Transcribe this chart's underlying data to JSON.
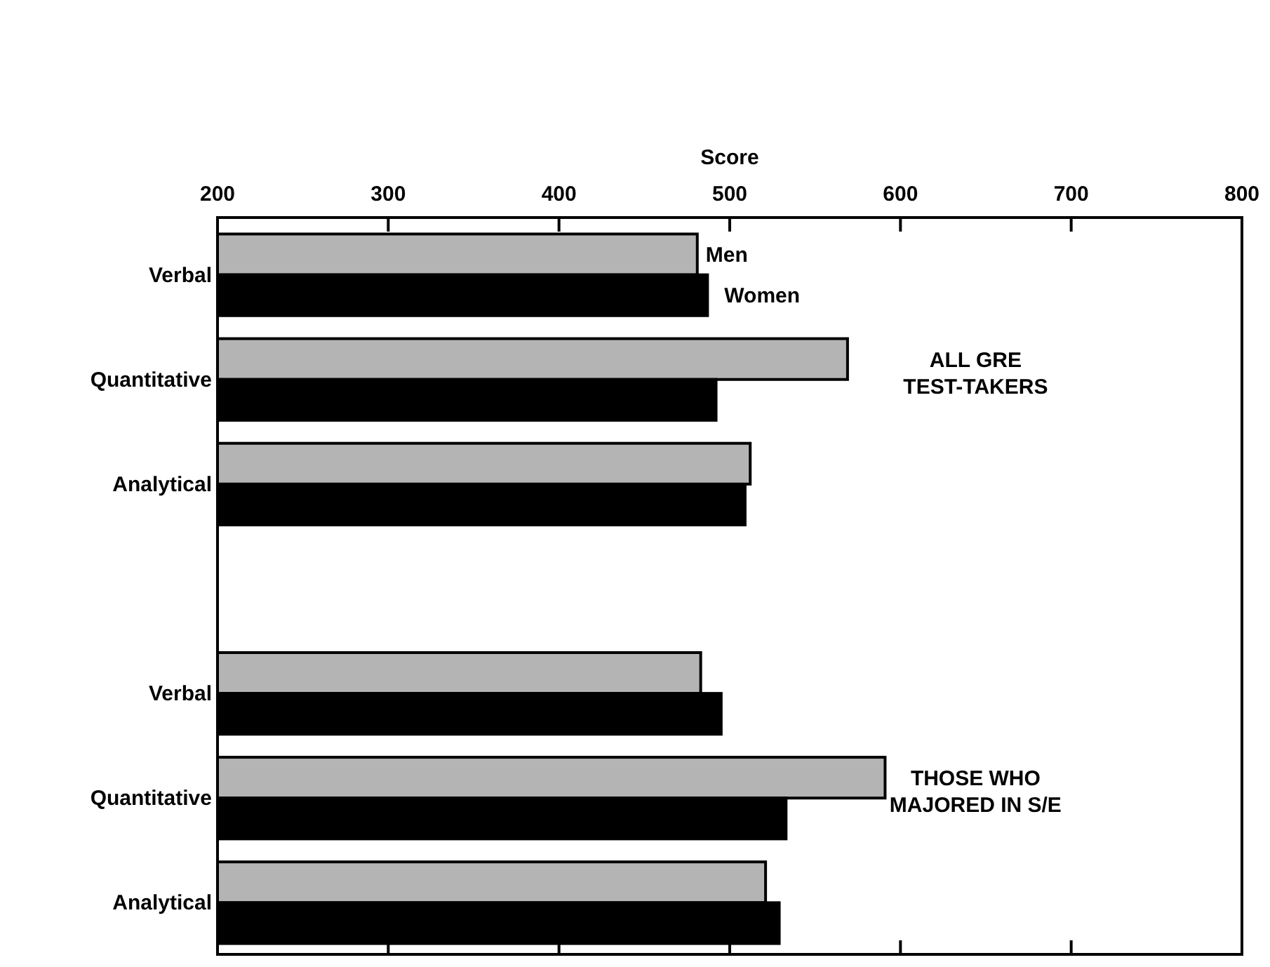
{
  "chart_data": {
    "type": "bar",
    "orientation": "horizontal",
    "xlabel": "Score",
    "categories": [
      "Verbal",
      "Quantitative",
      "Analytical",
      null,
      "Verbal",
      "Quantitative",
      "Analytical"
    ],
    "series": [
      {
        "name": "Men",
        "color": "#b4b4b4",
        "values": [
          481,
          569,
          512,
          null,
          483,
          591,
          521
        ]
      },
      {
        "name": "Women",
        "color": "#000000",
        "values": [
          487,
          492,
          509,
          null,
          495,
          533,
          529
        ]
      }
    ],
    "xlim": [
      200,
      800
    ],
    "xticks": [
      200,
      300,
      400,
      500,
      600,
      700,
      800
    ],
    "legend": false,
    "annotations": [
      "ALL GRE\nTEST-TAKERS",
      "THOSE WHO\nMAJORED IN S/E"
    ]
  }
}
